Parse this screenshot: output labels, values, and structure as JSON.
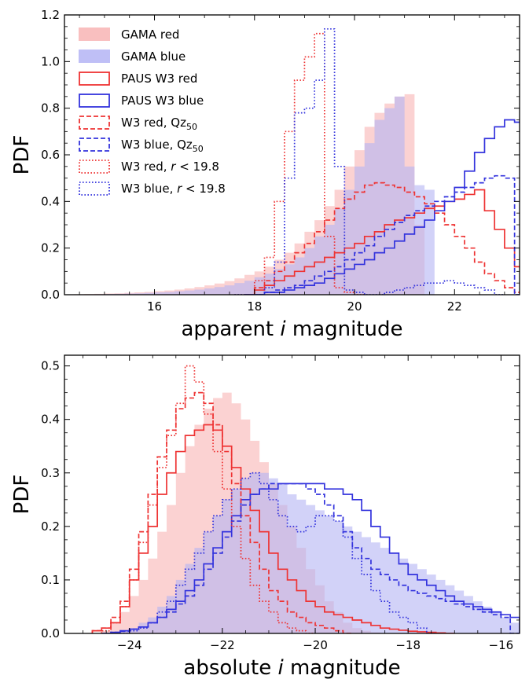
{
  "colors": {
    "gama_red": "#f8b4b4",
    "gama_blue": "#b4b4f4",
    "paus_red": "#ee3333",
    "paus_blue": "#3333dd"
  },
  "legend": [
    {
      "label": "GAMA red",
      "style": "fill",
      "color": "#f8b4b4"
    },
    {
      "label": "GAMA blue",
      "style": "fill",
      "color": "#b4b4f4"
    },
    {
      "label": "PAUS W3 red",
      "style": "solid",
      "color": "#ee3333"
    },
    {
      "label": "PAUS W3 blue",
      "style": "solid",
      "color": "#3333dd"
    },
    {
      "label": "W3 red, Qz",
      "sub": "50",
      "style": "dashed",
      "color": "#ee3333"
    },
    {
      "label": "W3 blue, Qz",
      "sub": "50",
      "style": "dashed",
      "color": "#3333dd"
    },
    {
      "label": "W3 red, ",
      "ital": "r",
      "tail": " < 19.8",
      "style": "dotted",
      "color": "#ee3333"
    },
    {
      "label": "W3 blue, ",
      "ital": "r",
      "tail": " < 19.8",
      "style": "dotted",
      "color": "#3333dd"
    }
  ],
  "chart_data": [
    {
      "type": "histogram",
      "xlabel_pre": "apparent ",
      "xlabel_ital": "i",
      "xlabel_post": " magnitude",
      "ylabel": "PDF",
      "xlim": [
        14.2,
        23.3
      ],
      "ylim": [
        0,
        1.2
      ],
      "xticks": [
        16,
        18,
        20,
        22
      ],
      "yticks": [
        0.0,
        0.2,
        0.4,
        0.6,
        0.8,
        1.0,
        1.2
      ],
      "ytick_labels": [
        "0.0",
        "0.2",
        "0.4",
        "0.6",
        "0.8",
        "1.0",
        "1.2"
      ],
      "series": [
        {
          "key": "gama_red",
          "style": "fill",
          "x0": 14.2,
          "bin": 0.2,
          "values": [
            0.001,
            0.002,
            0.003,
            0.004,
            0.005,
            0.006,
            0.008,
            0.01,
            0.012,
            0.015,
            0.018,
            0.022,
            0.027,
            0.033,
            0.04,
            0.048,
            0.058,
            0.07,
            0.085,
            0.1,
            0.12,
            0.15,
            0.18,
            0.22,
            0.27,
            0.32,
            0.38,
            0.45,
            0.55,
            0.62,
            0.72,
            0.78,
            0.82,
            0.85,
            0.86,
            0.3
          ]
        },
        {
          "key": "gama_blue",
          "style": "fill",
          "x0": 14.2,
          "bin": 0.2,
          "values": [
            0.0,
            0.001,
            0.001,
            0.002,
            0.003,
            0.004,
            0.005,
            0.006,
            0.008,
            0.01,
            0.012,
            0.015,
            0.018,
            0.022,
            0.027,
            0.033,
            0.04,
            0.05,
            0.06,
            0.075,
            0.09,
            0.11,
            0.13,
            0.16,
            0.2,
            0.25,
            0.3,
            0.37,
            0.45,
            0.55,
            0.65,
            0.75,
            0.8,
            0.85,
            0.55,
            0.47,
            0.45
          ]
        },
        {
          "key": "paus_red",
          "style": "solid",
          "x0": 17.8,
          "bin": 0.2,
          "values": [
            0.0,
            0.02,
            0.04,
            0.06,
            0.08,
            0.1,
            0.12,
            0.14,
            0.16,
            0.18,
            0.2,
            0.22,
            0.25,
            0.27,
            0.3,
            0.32,
            0.33,
            0.35,
            0.37,
            0.38,
            0.4,
            0.41,
            0.43,
            0.45,
            0.36,
            0.28,
            0.2,
            0.12,
            0.07,
            0.04,
            0.0
          ]
        },
        {
          "key": "paus_blue",
          "style": "solid",
          "x0": 17.8,
          "bin": 0.2,
          "values": [
            0.0,
            0.0,
            0.01,
            0.01,
            0.02,
            0.03,
            0.04,
            0.05,
            0.07,
            0.09,
            0.11,
            0.13,
            0.15,
            0.18,
            0.2,
            0.23,
            0.26,
            0.29,
            0.32,
            0.36,
            0.4,
            0.46,
            0.53,
            0.61,
            0.67,
            0.72,
            0.75,
            0.74,
            0.74,
            0.05,
            0.0
          ]
        },
        {
          "key": "qz_red",
          "style": "dashed",
          "color": "paus_red",
          "x0": 17.8,
          "bin": 0.2,
          "values": [
            0.0,
            0.03,
            0.06,
            0.1,
            0.14,
            0.18,
            0.22,
            0.27,
            0.32,
            0.37,
            0.41,
            0.44,
            0.47,
            0.48,
            0.47,
            0.46,
            0.44,
            0.42,
            0.39,
            0.35,
            0.3,
            0.25,
            0.2,
            0.14,
            0.09,
            0.06,
            0.03,
            0.01,
            0.0
          ]
        },
        {
          "key": "qz_blue",
          "style": "dashed",
          "color": "paus_blue",
          "x0": 17.8,
          "bin": 0.2,
          "values": [
            0.0,
            0.0,
            0.01,
            0.02,
            0.03,
            0.04,
            0.06,
            0.08,
            0.1,
            0.12,
            0.15,
            0.18,
            0.21,
            0.25,
            0.28,
            0.31,
            0.34,
            0.36,
            0.38,
            0.4,
            0.42,
            0.44,
            0.46,
            0.48,
            0.5,
            0.51,
            0.5,
            0.0
          ]
        },
        {
          "key": "r_red",
          "style": "dotted",
          "color": "paus_red",
          "x0": 17.6,
          "bin": 0.2,
          "values": [
            0.0,
            0.0,
            0.06,
            0.16,
            0.4,
            0.7,
            0.92,
            1.02,
            1.12,
            0.25,
            0.03,
            0.01,
            0.0
          ]
        },
        {
          "key": "r_blue",
          "style": "dotted",
          "color": "paus_blue",
          "x0": 17.6,
          "bin": 0.2,
          "values": [
            0.0,
            0.0,
            0.0,
            0.03,
            0.14,
            0.5,
            0.78,
            0.8,
            0.92,
            1.14,
            0.55,
            0.02,
            0.01,
            0.0,
            0.0,
            0.01,
            0.02,
            0.03,
            0.04,
            0.05,
            0.05,
            0.06,
            0.05,
            0.04,
            0.03,
            0.02,
            0.0
          ]
        }
      ]
    },
    {
      "type": "histogram",
      "xlabel_pre": "absolute ",
      "xlabel_ital": "i",
      "xlabel_post": " magnitude",
      "ylabel": "PDF",
      "xlim": [
        -25.4,
        -15.6
      ],
      "ylim": [
        0,
        0.52
      ],
      "xticks": [
        -24,
        -22,
        -20,
        -18,
        -16
      ],
      "xtick_labels": [
        "−24",
        "−22",
        "−20",
        "−18",
        "−16"
      ],
      "yticks": [
        0.0,
        0.1,
        0.2,
        0.3,
        0.4,
        0.5
      ],
      "ytick_labels": [
        "0.0",
        "0.1",
        "0.2",
        "0.3",
        "0.4",
        "0.5"
      ],
      "series": [
        {
          "key": "gama_red",
          "style": "fill",
          "x0": -24.6,
          "bin": 0.2,
          "values": [
            0.005,
            0.02,
            0.04,
            0.07,
            0.1,
            0.14,
            0.19,
            0.24,
            0.3,
            0.35,
            0.39,
            0.42,
            0.44,
            0.45,
            0.43,
            0.4,
            0.36,
            0.32,
            0.28,
            0.24,
            0.2,
            0.16,
            0.12,
            0.09,
            0.06,
            0.04,
            0.02,
            0.01,
            0.005,
            0.002,
            0.0
          ]
        },
        {
          "key": "gama_blue",
          "style": "fill",
          "x0": -24.4,
          "bin": 0.2,
          "values": [
            0.0,
            0.005,
            0.01,
            0.02,
            0.03,
            0.05,
            0.07,
            0.1,
            0.13,
            0.16,
            0.19,
            0.22,
            0.25,
            0.27,
            0.29,
            0.3,
            0.3,
            0.29,
            0.28,
            0.26,
            0.25,
            0.24,
            0.23,
            0.22,
            0.21,
            0.2,
            0.19,
            0.18,
            0.17,
            0.16,
            0.15,
            0.14,
            0.13,
            0.12,
            0.11,
            0.1,
            0.09,
            0.08,
            0.07,
            0.06,
            0.05,
            0.04,
            0.03,
            0.02,
            0.01,
            0.0
          ]
        },
        {
          "key": "paus_red",
          "style": "solid",
          "x0": -24.8,
          "bin": 0.2,
          "values": [
            0.005,
            0.01,
            0.02,
            0.05,
            0.1,
            0.15,
            0.2,
            0.26,
            0.3,
            0.34,
            0.37,
            0.38,
            0.39,
            0.38,
            0.35,
            0.31,
            0.27,
            0.23,
            0.19,
            0.15,
            0.12,
            0.1,
            0.08,
            0.06,
            0.05,
            0.04,
            0.035,
            0.03,
            0.025,
            0.02,
            0.015,
            0.01,
            0.008,
            0.006,
            0.004,
            0.003,
            0.002,
            0.001,
            0.0
          ]
        },
        {
          "key": "paus_blue",
          "style": "solid",
          "x0": -24.6,
          "bin": 0.2,
          "values": [
            0.0,
            0.002,
            0.005,
            0.008,
            0.012,
            0.02,
            0.03,
            0.045,
            0.06,
            0.08,
            0.1,
            0.13,
            0.16,
            0.19,
            0.22,
            0.25,
            0.26,
            0.27,
            0.27,
            0.28,
            0.28,
            0.28,
            0.28,
            0.28,
            0.27,
            0.27,
            0.26,
            0.25,
            0.23,
            0.2,
            0.18,
            0.15,
            0.13,
            0.11,
            0.1,
            0.09,
            0.08,
            0.07,
            0.06,
            0.055,
            0.05,
            0.045,
            0.04,
            0.035,
            0.03,
            0.0
          ]
        },
        {
          "key": "qz_red",
          "style": "dashed",
          "color": "paus_red",
          "x0": -24.8,
          "bin": 0.2,
          "values": [
            0.005,
            0.01,
            0.03,
            0.06,
            0.12,
            0.19,
            0.26,
            0.33,
            0.38,
            0.42,
            0.44,
            0.45,
            0.43,
            0.39,
            0.34,
            0.28,
            0.22,
            0.17,
            0.12,
            0.08,
            0.06,
            0.04,
            0.03,
            0.02,
            0.015,
            0.01,
            0.005,
            0.0
          ]
        },
        {
          "key": "qz_blue",
          "style": "dashed",
          "color": "paus_blue",
          "x0": -24.6,
          "bin": 0.2,
          "values": [
            0.0,
            0.002,
            0.004,
            0.008,
            0.012,
            0.02,
            0.03,
            0.04,
            0.055,
            0.07,
            0.09,
            0.12,
            0.15,
            0.18,
            0.21,
            0.24,
            0.26,
            0.27,
            0.28,
            0.28,
            0.28,
            0.28,
            0.27,
            0.26,
            0.24,
            0.22,
            0.19,
            0.16,
            0.14,
            0.12,
            0.11,
            0.1,
            0.09,
            0.08,
            0.075,
            0.07,
            0.065,
            0.06,
            0.055,
            0.05,
            0.045,
            0.04,
            0.035,
            0.03,
            0.0
          ]
        },
        {
          "key": "r_red",
          "style": "dotted",
          "color": "paus_red",
          "x0": -24.6,
          "bin": 0.2,
          "values": [
            0.005,
            0.02,
            0.05,
            0.1,
            0.17,
            0.24,
            0.31,
            0.37,
            0.43,
            0.5,
            0.47,
            0.41,
            0.34,
            0.27,
            0.2,
            0.14,
            0.09,
            0.06,
            0.04,
            0.02,
            0.01,
            0.005,
            0.0
          ]
        },
        {
          "key": "r_blue",
          "style": "dotted",
          "color": "paus_blue",
          "x0": -24.2,
          "bin": 0.2,
          "values": [
            0.0,
            0.005,
            0.01,
            0.02,
            0.04,
            0.06,
            0.09,
            0.12,
            0.15,
            0.19,
            0.22,
            0.25,
            0.27,
            0.29,
            0.3,
            0.28,
            0.25,
            0.22,
            0.2,
            0.19,
            0.2,
            0.22,
            0.22,
            0.21,
            0.18,
            0.14,
            0.11,
            0.08,
            0.06,
            0.04,
            0.03,
            0.02,
            0.01,
            0.0
          ]
        }
      ]
    }
  ]
}
